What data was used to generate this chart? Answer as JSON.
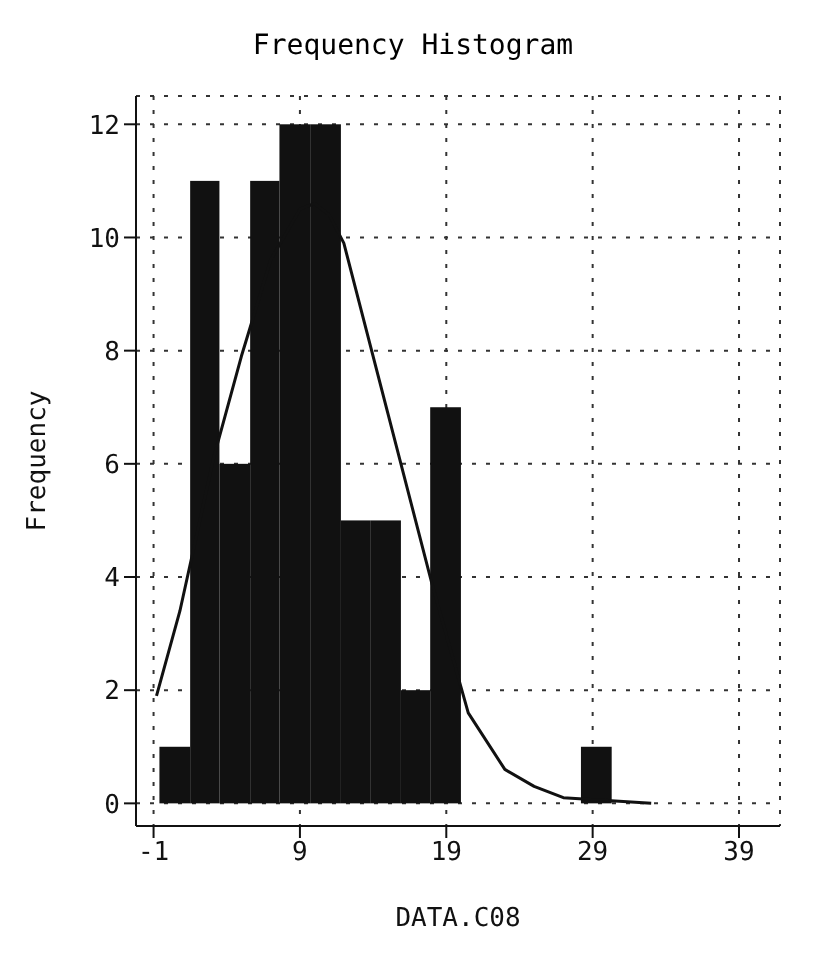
{
  "chart_data": {
    "type": "histogram",
    "title": "Frequency Histogram",
    "xlabel": "DATA.C08",
    "ylabel": "Frequency",
    "bins": [
      -0.6,
      1.5,
      3.5,
      5.6,
      7.6,
      9.7,
      11.8,
      13.8,
      15.9,
      17.9,
      20.0,
      28.2,
      30.3
    ],
    "series": [
      {
        "color": "#111111",
        "values": [
          1,
          11,
          6,
          11,
          12,
          12,
          5,
          5,
          2,
          7,
          0,
          1
        ]
      },
      {
        "type": "line",
        "color": "#111111",
        "x": [
          -0.8,
          0.8,
          3.1,
          5,
          7,
          9,
          10,
          11,
          12,
          15,
          18,
          20.5,
          23,
          25,
          27,
          30,
          33
        ],
        "values": [
          1.9,
          3.4,
          6.1,
          7.9,
          9.6,
          10.5,
          10.6,
          10.4,
          9.9,
          6.9,
          3.9,
          1.6,
          0.6,
          0.3,
          0.1,
          0.05,
          0
        ]
      }
    ],
    "xlim": [
      -2.2,
      41.8
    ],
    "xticks": [
      -1,
      9,
      19,
      29,
      39
    ],
    "ylim": [
      -0.4,
      12.5
    ],
    "yticks": [
      0,
      2,
      4,
      6,
      8,
      10,
      12
    ],
    "grid": true,
    "marker": "none",
    "line_style": "solid"
  }
}
